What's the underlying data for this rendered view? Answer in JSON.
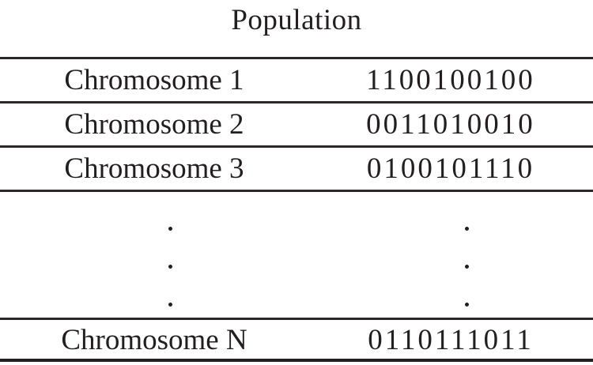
{
  "figure": {
    "title": "Population"
  },
  "table": {
    "columns": [
      "chromosome-label",
      "bit-string"
    ],
    "rows": [
      {
        "label": "Chromosome 1",
        "value": "1100100100"
      },
      {
        "label": "Chromosome 2",
        "value": "0011010010"
      },
      {
        "label": "Chromosome 3",
        "value": "0100101110"
      },
      {
        "label": "Chromosome N",
        "value": "0110111011"
      }
    ],
    "ellipsis": {
      "symbol": ".",
      "rows": 3,
      "columns": 2,
      "meaning": "continuation of population members between Chromosome 3 and Chromosome N"
    }
  },
  "colors": {
    "text": "#231f20",
    "rule": "#2b2728",
    "background": "#ffffff"
  }
}
